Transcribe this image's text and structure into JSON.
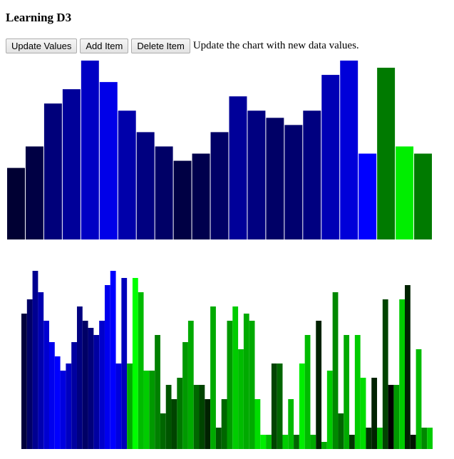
{
  "page": {
    "title": "Learning D3"
  },
  "controls": {
    "update_label": "Update Values",
    "add_label": "Add Item",
    "delete_label": "Delete Item",
    "hint": "Update the chart with new data values."
  },
  "chart_data": [
    {
      "type": "bar",
      "title": "",
      "xlabel": "",
      "ylabel": "",
      "ylim": [
        0,
        25
      ],
      "values": [
        10,
        13,
        19,
        21,
        25,
        22,
        18,
        15,
        13,
        11,
        12,
        15,
        20,
        18,
        17,
        16,
        18,
        23,
        25,
        12,
        24,
        13,
        12
      ],
      "colors": [
        "#000033",
        "#000044",
        "#00007a",
        "#000099",
        "#0000c4",
        "#0000e8",
        "#0000aa",
        "#000080",
        "#000066",
        "#000044",
        "#00004d",
        "#000066",
        "#000099",
        "#000080",
        "#000066",
        "#00006e",
        "#000080",
        "#0000b5",
        "#0000d9",
        "#0000ff",
        "#007a00",
        "#00ee00",
        "#007a00"
      ]
    },
    {
      "type": "bar",
      "title": "",
      "xlabel": "",
      "ylabel": "",
      "ylim": [
        0,
        25
      ],
      "values": [
        19,
        21,
        25,
        22,
        18,
        15,
        13,
        11,
        12,
        15,
        20,
        18,
        17,
        16,
        18,
        23,
        25,
        12,
        24,
        12,
        24,
        22,
        11,
        11,
        16,
        5,
        9,
        7,
        10,
        15,
        18,
        9,
        9,
        7,
        20,
        3,
        7,
        18,
        20,
        14,
        19,
        18,
        7,
        2,
        2,
        12,
        12,
        2,
        7,
        2,
        12,
        16,
        2,
        18,
        1,
        11,
        22,
        5,
        16,
        2,
        16,
        10,
        3,
        10,
        3,
        21,
        9,
        9,
        21,
        23,
        2,
        14,
        3,
        3
      ],
      "colors": [
        "#00003d",
        "#000066",
        "#000090",
        "#0000b0",
        "#0000d0",
        "#0000ee",
        "#0000ff",
        "#0000e0",
        "#0000c0",
        "#0000a0",
        "#000080",
        "#000066",
        "#00007a",
        "#0000a0",
        "#0000cc",
        "#0000ee",
        "#0000ff",
        "#0000dd",
        "#0000bb",
        "#00aa00",
        "#00ff00",
        "#00bb00",
        "#00cc00",
        "#009900",
        "#008000",
        "#006600",
        "#005500",
        "#004400",
        "#007700",
        "#009900",
        "#00aa00",
        "#006600",
        "#004400",
        "#002200",
        "#00aa00",
        "#005500",
        "#006600",
        "#009900",
        "#00cc00",
        "#00bb00",
        "#00aa00",
        "#00aa00",
        "#00dd00",
        "#00ee00",
        "#00bb00",
        "#004400",
        "#006600",
        "#00cc00",
        "#00bb00",
        "#006600",
        "#00ee00",
        "#00bb00",
        "#00aa00",
        "#002200",
        "#00aa00",
        "#00cc00",
        "#008800",
        "#006600",
        "#00aa00",
        "#003300",
        "#00cc00",
        "#00dd00",
        "#003300",
        "#002200",
        "#00bb00",
        "#004400",
        "#000000",
        "#009900",
        "#00cc00",
        "#002200",
        "#001100",
        "#00bb00",
        "#008800",
        "#00cc00"
      ]
    }
  ]
}
